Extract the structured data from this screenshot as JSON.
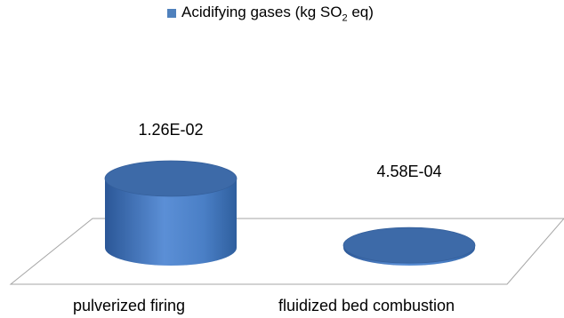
{
  "chart_data": {
    "type": "bar",
    "categories": [
      "pulverized firing",
      "fluidized bed combustion"
    ],
    "series": [
      {
        "name": "Acidifying gases (kg SO2 eq)",
        "values": [
          0.0126,
          0.000458
        ]
      }
    ],
    "data_labels": [
      "1.26E-02",
      "4.58E-04"
    ],
    "legend": {
      "text_before": "Acidifying gases (kg SO",
      "subscript": "2",
      "text_after": " eq)",
      "position": "top"
    },
    "xlabel": "",
    "ylabel": "",
    "ylim": [
      0,
      0.0126
    ],
    "grid": false
  },
  "colors": {
    "bar_side": "#3a6db3",
    "bar_top": "#3d6aa8",
    "legend_swatch": "#4f81bd",
    "floor": "#a6a6a6"
  }
}
